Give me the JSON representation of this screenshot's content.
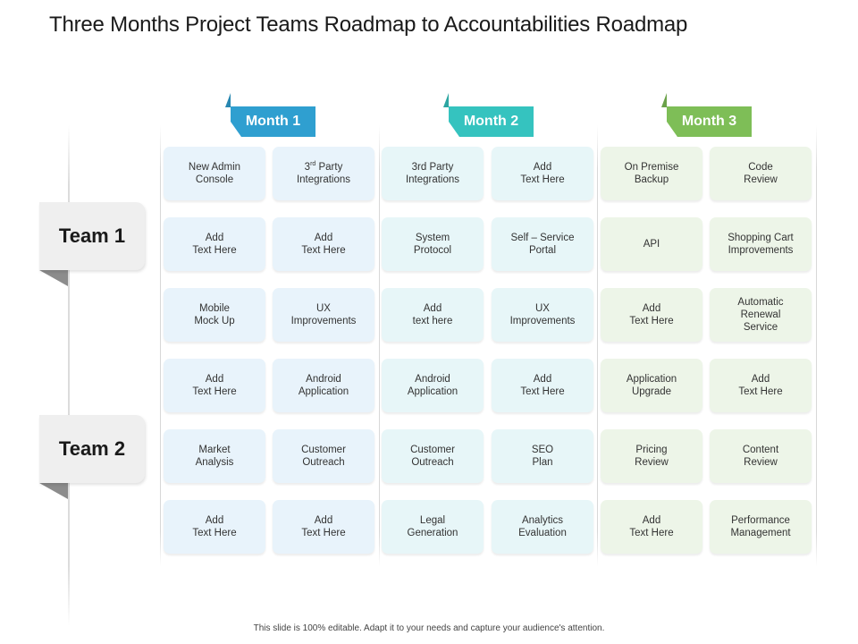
{
  "title": "Three Months Project Teams Roadmap to Accountabilities Roadmap",
  "footer": "This slide is 100% editable. Adapt it to your needs and capture your audience's attention.",
  "colors": {
    "month1_tab": "#2f9fd0",
    "month1_card": "#e8f3fb",
    "month2_tab": "#35c3bf",
    "month2_card": "#e7f6f8",
    "month3_tab": "#7ebe57",
    "month3_card": "#edf5e8",
    "team_box": "#efefef"
  },
  "teams": [
    {
      "label": "Team 1"
    },
    {
      "label": "Team 2"
    }
  ],
  "months": [
    {
      "label": "Month 1",
      "cards": [
        [
          "New Admin",
          "Console"
        ],
        [
          "3rd Party",
          "Integrations"
        ],
        [
          "Add",
          "Text Here"
        ],
        [
          "Add",
          "Text Here"
        ],
        [
          "Mobile",
          "Mock Up"
        ],
        [
          "UX",
          "Improvements"
        ],
        [
          "Add",
          "Text Here"
        ],
        [
          "Android",
          "Application"
        ],
        [
          "Market",
          "Analysis"
        ],
        [
          "Customer",
          "Outreach"
        ],
        [
          "Add",
          "Text Here"
        ],
        [
          "Add",
          "Text Here"
        ]
      ]
    },
    {
      "label": "Month 2",
      "cards": [
        [
          "3rd Party",
          "Integrations"
        ],
        [
          "Add",
          "Text Here"
        ],
        [
          "System",
          "Protocol"
        ],
        [
          "Self – Service",
          "Portal"
        ],
        [
          "Add",
          "text here"
        ],
        [
          "UX",
          "Improvements"
        ],
        [
          "Android",
          "Application"
        ],
        [
          "Add",
          "Text Here"
        ],
        [
          "Customer",
          "Outreach"
        ],
        [
          "SEO",
          "Plan"
        ],
        [
          "Legal",
          "Generation"
        ],
        [
          "Analytics",
          "Evaluation"
        ]
      ]
    },
    {
      "label": "Month 3",
      "cards": [
        [
          "On Premise",
          "Backup"
        ],
        [
          "Code",
          "Review"
        ],
        [
          "API"
        ],
        [
          "Shopping Cart",
          "Improvements"
        ],
        [
          "Add",
          "Text Here"
        ],
        [
          "Automatic",
          "Renewal",
          "Service"
        ],
        [
          "Application",
          "Upgrade"
        ],
        [
          "Add",
          "Text Here"
        ],
        [
          "Pricing",
          "Review"
        ],
        [
          "Content",
          "Review"
        ],
        [
          "Add",
          "Text Here"
        ],
        [
          "Performance",
          "Management"
        ]
      ]
    }
  ]
}
